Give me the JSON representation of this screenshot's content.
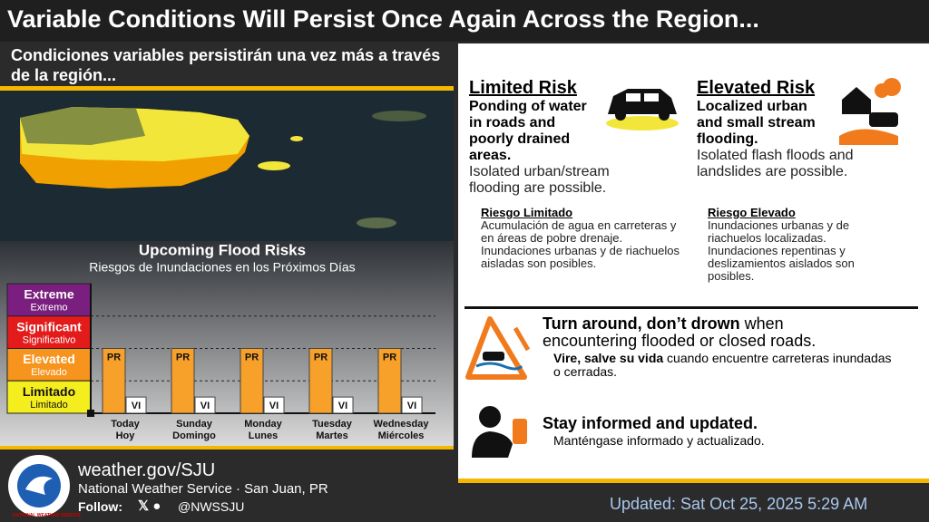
{
  "header": {
    "title": "Variable Conditions Will Persist Once Again Across the Region...",
    "subtitle": "Condiciones variables persistirán una vez más a través de la región..."
  },
  "chart_data": {
    "type": "bar",
    "title": "Upcoming Flood Risks",
    "subtitle": "Riesgos de Inundaciones en los Próximos Días",
    "levels": [
      {
        "name": "Extreme",
        "name_es": "Extremo",
        "color": "#7a1f7f"
      },
      {
        "name": "Significant",
        "name_es": "Significativo",
        "color": "#e41b1b"
      },
      {
        "name": "Elevated",
        "name_es": "Elevado",
        "color": "#f7941d"
      },
      {
        "name": "Limitado",
        "name_es": "Limitado",
        "color": "#f5ee1e"
      }
    ],
    "categories": [
      "Today",
      "Sunday",
      "Monday",
      "Tuesday",
      "Wednesday"
    ],
    "categories_es": [
      "Hoy",
      "Domingo",
      "Lunes",
      "Martes",
      "Miércoles"
    ],
    "series": [
      {
        "name": "PR",
        "color": "#f7a12b",
        "values": [
          2,
          2,
          2,
          2,
          2
        ]
      },
      {
        "name": "VI",
        "color": "#ffffff",
        "values": [
          0.5,
          0.5,
          0.5,
          0.5,
          0.5
        ]
      }
    ],
    "ylim": [
      0,
      4
    ],
    "yticks": [
      1,
      2,
      3
    ]
  },
  "risks": [
    {
      "title": "Limited Risk",
      "headline": "Ponding of water in roads and poorly drained areas.",
      "text": "Isolated urban/stream flooding are possible.",
      "title_es": "Riesgo Limitado",
      "text_es": "Acumulación de agua en carreteras y en áreas de pobre drenaje. Inundaciones urbanas y de riachuelos aisladas son posibles."
    },
    {
      "title": "Elevated Risk",
      "headline": "Localized urban and small stream flooding.",
      "text": "Isolated flash floods and landslides are possible.",
      "title_es": "Riesgo Elevado",
      "text_es": "Inundaciones urbanas y de riachuelos localizadas. Inundaciones repentinas y deslizamientos aislados son posibles."
    }
  ],
  "safety": [
    {
      "bold": "Turn around, don’t drown",
      "text": " when encountering flooded or closed roads.",
      "bold_es": "Vire, salve su vida",
      "text_es": " cuando encuentre carreteras inundadas o cerradas."
    },
    {
      "bold": "Stay informed and updated.",
      "text_es": "Manténgase informado y actualizado."
    }
  ],
  "footer": {
    "website": "weather.gov/SJU",
    "office": "National Weather Service · San Juan, PR",
    "follow": "Follow:",
    "handle": "@NWSSJU",
    "updated": "Updated: Sat Oct 25, 2025 5:29 AM",
    "logo": "NATIONAL WEATHER SERVICE"
  }
}
